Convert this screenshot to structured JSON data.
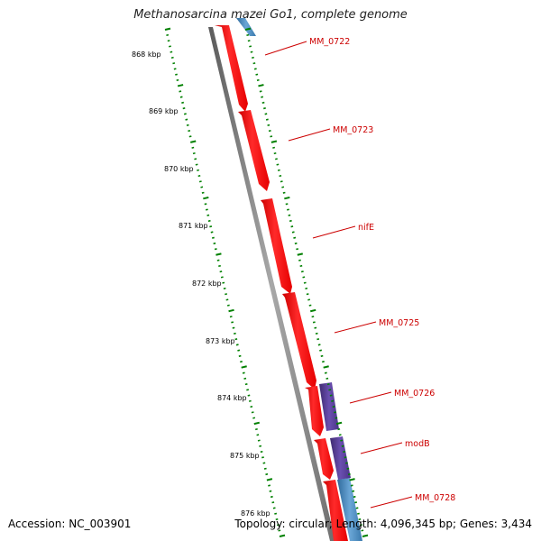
{
  "map": {
    "title": "Methanosarcina mazei Go1, complete genome",
    "accession_text": "Accession: NC_003901",
    "summary_text": "Topology: circular; Length: 4,096,345 bp; Genes: 3,434",
    "kbp_labels": [
      "868 kbp",
      "869 kbp",
      "870 kbp",
      "871 kbp",
      "872 kbp",
      "873 kbp",
      "874 kbp",
      "875 kbp",
      "876 kbp"
    ],
    "gene_labels": [
      "MM_0722",
      "MM_0723",
      "nifE",
      "MM_0725",
      "MM_0726",
      "modB",
      "MM_0728"
    ],
    "colors": {
      "forward_strand_genes": "#ff0000",
      "purple_genes": "#5a3d99",
      "blue_genes": "#4682b4",
      "backbone": "#808080",
      "tick_marks": "#008000",
      "gene_labels": "#cc0000"
    }
  }
}
